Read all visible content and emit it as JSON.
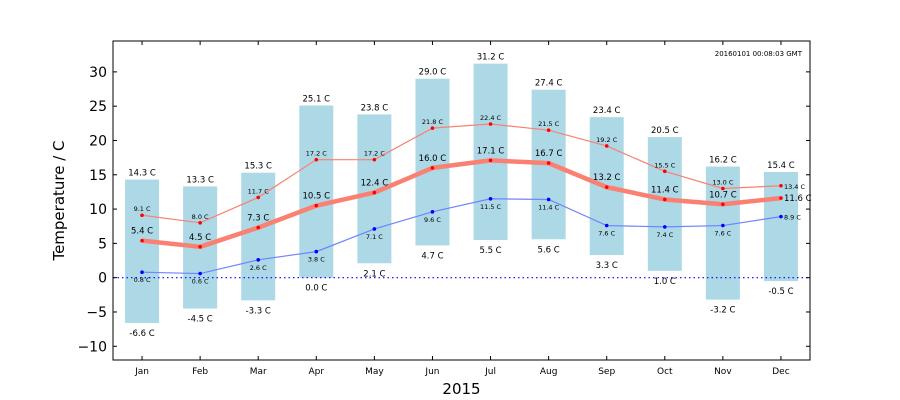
{
  "chart_data": {
    "type": "bar",
    "timestamp": "20160101 00:08:03 GMT",
    "xlabel": "2015",
    "ylabel": "Temperature / C",
    "ylim": [
      -12,
      34.5
    ],
    "yticks": [
      -10,
      -5,
      0,
      5,
      10,
      15,
      20,
      25,
      30
    ],
    "unit": "C",
    "categories": [
      "Jan",
      "Feb",
      "Mar",
      "Apr",
      "May",
      "Jun",
      "Jul",
      "Aug",
      "Sep",
      "Oct",
      "Nov",
      "Dec"
    ],
    "range_max": [
      14.3,
      13.3,
      15.3,
      25.1,
      23.8,
      29.0,
      31.2,
      27.4,
      23.4,
      20.5,
      16.2,
      15.4
    ],
    "range_min": [
      -6.6,
      -4.5,
      -3.3,
      0.0,
      2.1,
      4.7,
      5.5,
      5.6,
      3.3,
      1.0,
      -3.2,
      -0.5
    ],
    "mean": [
      5.4,
      4.5,
      7.3,
      10.5,
      12.4,
      16.0,
      17.1,
      16.7,
      13.2,
      11.4,
      10.7,
      11.6
    ],
    "mean_max": [
      9.1,
      8.0,
      11.7,
      17.2,
      17.2,
      21.8,
      22.4,
      21.5,
      19.2,
      15.5,
      13.0,
      13.4
    ],
    "mean_min": [
      0.8,
      0.6,
      2.6,
      3.8,
      7.1,
      9.6,
      11.5,
      11.4,
      7.6,
      7.4,
      7.6,
      8.9
    ],
    "colors": {
      "bar": "#add8e6",
      "mean_line": "#fa8072",
      "mean_max_line": "#fa8072",
      "mean_min_line": "#6f84ff",
      "max_marker": "#ff0000",
      "min_marker": "#0000ff",
      "zero_line": "#0000ff"
    },
    "grid": false
  }
}
